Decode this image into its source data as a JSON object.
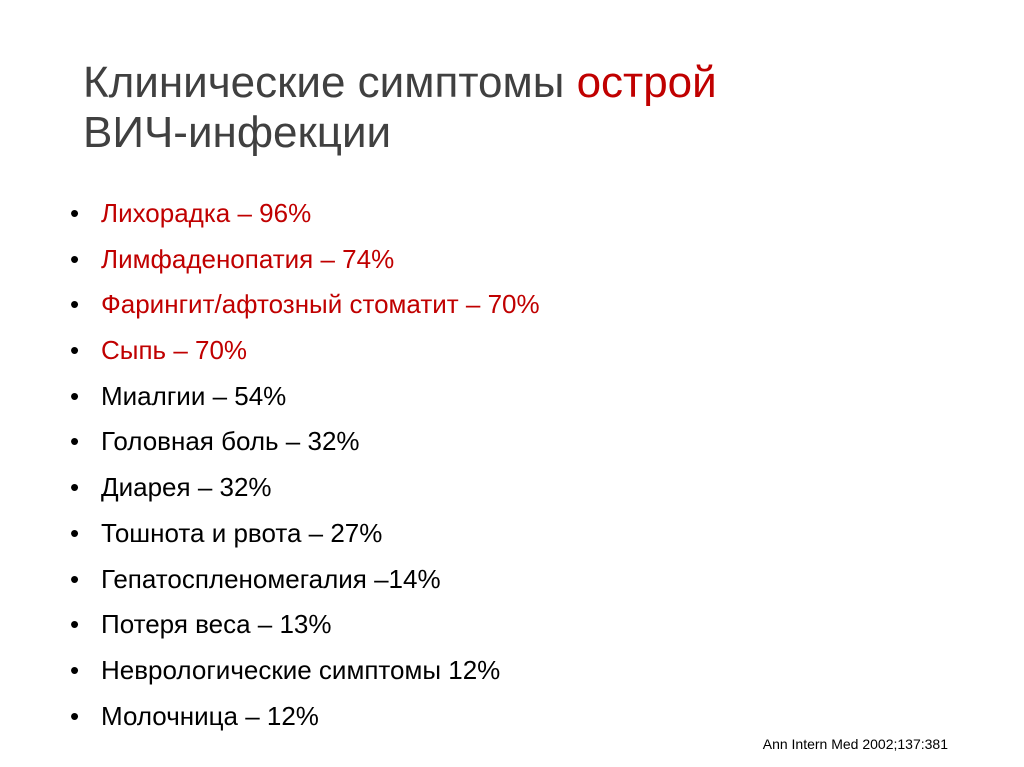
{
  "title": {
    "parts": [
      "Клинические симптомы",
      "острой",
      "ВИЧ-инфекции"
    ]
  },
  "items": [
    {
      "text": "Лихорадка – 96%",
      "color": "#c00000"
    },
    {
      "text": "Лимфаденопатия – 74%",
      "color": "#c00000"
    },
    {
      "text": "Фарингит/афтозный стоматит – 70%",
      "color": "#c00000"
    },
    {
      "text": "Сыпь – 70%",
      "color": "#c00000"
    },
    {
      "text": "Миалгии – 54%",
      "color": "#000000"
    },
    {
      "text": "Головная боль – 32%",
      "color": "#000000"
    },
    {
      "text": "Диарея – 32%",
      "color": "#000000"
    },
    {
      "text": "Тошнота и рвота – 27%",
      "color": "#000000"
    },
    {
      "text": "Гепатоспленомегалия –14%",
      "color": "#000000"
    },
    {
      "text": "Потеря веса – 13%",
      "color": "#000000"
    },
    {
      "text": "Неврологические симптомы 12%",
      "color": "#000000"
    },
    {
      "text": "Молочница – 12%",
      "color": "#000000"
    }
  ],
  "citation": "Ann Intern Med 2002;137:381"
}
